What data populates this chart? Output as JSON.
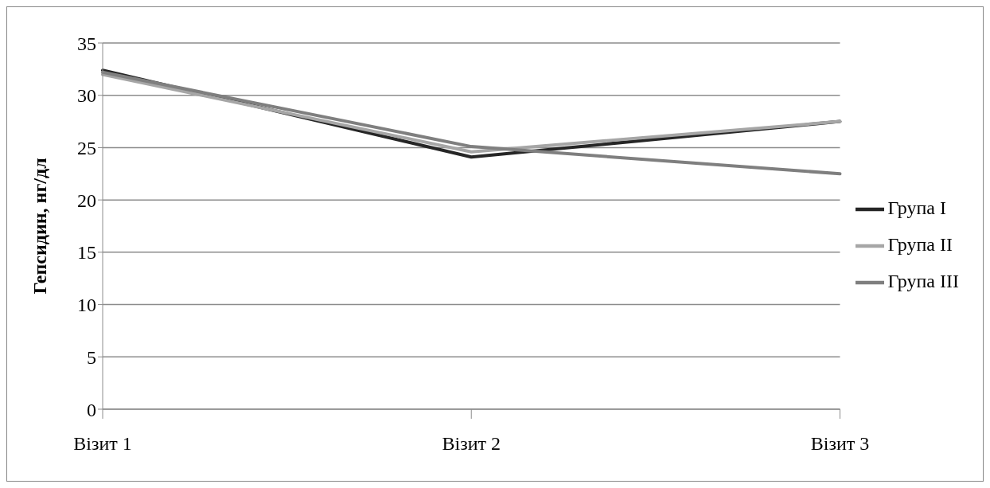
{
  "chart_data": {
    "type": "line",
    "ylabel": "Гепсидин, нг/дл",
    "categories": [
      "Візит 1",
      "Візит 2",
      "Візит 3"
    ],
    "series": [
      {
        "name": "Група I",
        "color": "#262626",
        "values": [
          32.4,
          24.1,
          27.5
        ]
      },
      {
        "name": "Група II",
        "color": "#a6a6a6",
        "values": [
          32,
          24.6,
          27.5
        ]
      },
      {
        "name": "Група III",
        "color": "#7f7f7f",
        "values": [
          32.2,
          25.1,
          22.5
        ]
      }
    ],
    "ylim": [
      0,
      35
    ],
    "yticks": [
      0,
      5,
      10,
      15,
      20,
      25,
      30,
      35
    ],
    "grid": "y",
    "legend": "right",
    "marker": "none"
  }
}
